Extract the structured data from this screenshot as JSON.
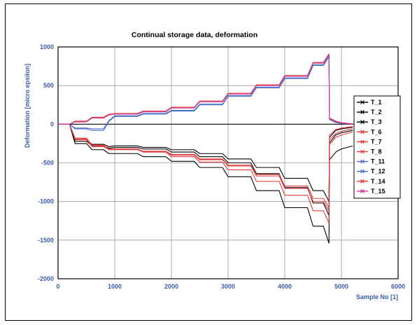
{
  "chart_data": {
    "type": "line",
    "title": "Continual storage data, deformation",
    "xlabel": "Sample No [1]",
    "ylabel": "Deformation [micro epsilon]",
    "xlim": [
      0,
      6000
    ],
    "ylim": [
      -2000,
      1000
    ],
    "xticks": [
      0,
      1000,
      2000,
      3000,
      4000,
      5000,
      6000
    ],
    "yticks": [
      1000,
      500,
      0,
      -500,
      -1000,
      -1500,
      -2000
    ],
    "grid": true,
    "legend_position": "right",
    "series": [
      {
        "name": "T_1",
        "color": "#000000",
        "marker": "x",
        "x": [
          0,
          300,
          600,
          900,
          1000,
          1500,
          2000,
          2500,
          3000,
          3500,
          4000,
          4500,
          4780,
          4790,
          4900,
          5000,
          5200
        ],
        "y": [
          0,
          -200,
          -260,
          -290,
          -280,
          -300,
          -330,
          -380,
          -450,
          -560,
          -700,
          -860,
          -1000,
          -170,
          -80,
          -60,
          -40
        ]
      },
      {
        "name": "T_2",
        "color": "#000000",
        "marker": "x",
        "x": [
          0,
          300,
          600,
          900,
          1000,
          1500,
          2000,
          2500,
          3000,
          3500,
          4000,
          4500,
          4780,
          4790,
          4900,
          5000,
          5200
        ],
        "y": [
          0,
          -220,
          -280,
          -310,
          -300,
          -320,
          -360,
          -420,
          -500,
          -640,
          -820,
          -1020,
          -1180,
          -240,
          -140,
          -110,
          -80
        ]
      },
      {
        "name": "T_3",
        "color": "#000000",
        "marker": "x",
        "x": [
          0,
          300,
          600,
          900,
          1000,
          1500,
          2000,
          2500,
          3000,
          3500,
          4000,
          4500,
          4780,
          4790,
          4900,
          5000,
          5200
        ],
        "y": [
          0,
          -250,
          -330,
          -380,
          -380,
          -420,
          -480,
          -560,
          -680,
          -860,
          -1080,
          -1320,
          -1540,
          -460,
          -360,
          -320,
          -280
        ]
      },
      {
        "name": "T_6",
        "color": "#e03c3c",
        "marker": "x",
        "x": [
          0,
          300,
          600,
          900,
          1000,
          1500,
          2000,
          2500,
          3000,
          3500,
          4000,
          4500,
          4780,
          4790,
          4900,
          5000,
          5200
        ],
        "y": [
          0,
          -180,
          -270,
          -320,
          -320,
          -360,
          -420,
          -490,
          -590,
          -740,
          -920,
          -1120,
          -1280,
          -260,
          -170,
          -140,
          -100
        ]
      },
      {
        "name": "T_7",
        "color": "#e03c3c",
        "marker": "x",
        "x": [
          0,
          300,
          600,
          900,
          1000,
          1500,
          2000,
          2500,
          3000,
          3500,
          4000,
          4500,
          4780,
          4790,
          4900,
          5000,
          5200
        ],
        "y": [
          0,
          -200,
          -290,
          -330,
          -330,
          -360,
          -400,
          -460,
          -540,
          -670,
          -830,
          -1000,
          -1120,
          -200,
          -120,
          -90,
          -60
        ]
      },
      {
        "name": "T_8",
        "color": "#e03c3c",
        "marker": "x",
        "x": [
          0,
          300,
          600,
          900,
          1000,
          1500,
          2000,
          2500,
          3000,
          3500,
          4000,
          4500,
          4780,
          4790,
          4900,
          5000,
          5200
        ],
        "y": [
          0,
          -190,
          -280,
          -320,
          -320,
          -350,
          -390,
          -450,
          -530,
          -650,
          -800,
          -960,
          -1080,
          -140,
          -70,
          -50,
          -30
        ]
      },
      {
        "name": "T_11",
        "color": "#4a6fc6",
        "marker": "x",
        "x": [
          0,
          300,
          600,
          900,
          1000,
          1500,
          2000,
          2500,
          3000,
          3500,
          4000,
          4500,
          4780,
          4790,
          4900,
          5000,
          5200
        ],
        "y": [
          0,
          -60,
          -80,
          40,
          100,
          130,
          170,
          250,
          360,
          470,
          590,
          760,
          870,
          60,
          20,
          10,
          0
        ]
      },
      {
        "name": "T_12",
        "color": "#4a6fc6",
        "marker": "x",
        "x": [
          0,
          300,
          600,
          900,
          1000,
          1500,
          2000,
          2500,
          3000,
          3500,
          4000,
          4500,
          4780,
          4790,
          4900,
          5000,
          5200
        ],
        "y": [
          0,
          -50,
          -60,
          50,
          110,
          140,
          180,
          260,
          370,
          480,
          600,
          770,
          880,
          70,
          30,
          15,
          5
        ]
      },
      {
        "name": "T_14",
        "color": "#e03c3c",
        "marker": "x",
        "x": [
          0,
          300,
          600,
          900,
          1000,
          1500,
          2000,
          2500,
          3000,
          3500,
          4000,
          4500,
          4780,
          4790,
          4900,
          5000,
          5200
        ],
        "y": [
          0,
          40,
          90,
          130,
          140,
          170,
          220,
          300,
          400,
          510,
          630,
          800,
          910,
          80,
          40,
          20,
          5
        ]
      },
      {
        "name": "T_15",
        "color": "#cc3399",
        "marker": "x",
        "x": [
          0,
          300,
          600,
          900,
          1000,
          1500,
          2000,
          2500,
          3000,
          3500,
          4000,
          4500,
          4780,
          4790,
          4900,
          5000,
          5200
        ],
        "y": [
          0,
          30,
          80,
          120,
          130,
          160,
          210,
          290,
          390,
          500,
          620,
          790,
          900,
          70,
          35,
          15,
          0
        ]
      }
    ]
  }
}
